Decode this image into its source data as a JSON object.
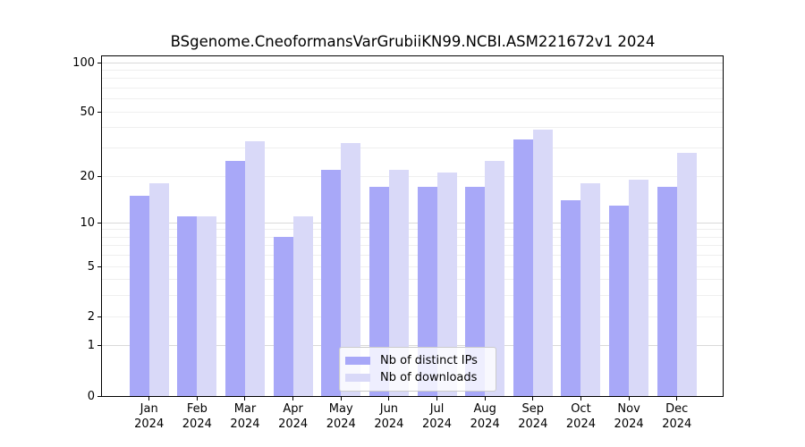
{
  "title": "BSgenome.CneoformansVarGrubiiKN99.NCBI.ASM221672v1 2024",
  "legend": {
    "items": [
      {
        "label": "Nb of distinct IPs",
        "color": "#a8a8f8"
      },
      {
        "label": "Nb of downloads",
        "color": "#d9d9f8"
      }
    ]
  },
  "chart_data": {
    "type": "bar",
    "title": "BSgenome.CneoformansVarGrubiiKN99.NCBI.ASM221672v1 2024",
    "categories": [
      "Jan 2024",
      "Feb 2024",
      "Mar 2024",
      "Apr 2024",
      "May 2024",
      "Jun 2024",
      "Jul 2024",
      "Aug 2024",
      "Sep 2024",
      "Oct 2024",
      "Nov 2024",
      "Dec 2024"
    ],
    "months": [
      "Jan",
      "Feb",
      "Mar",
      "Apr",
      "May",
      "Jun",
      "Jul",
      "Aug",
      "Sep",
      "Oct",
      "Nov",
      "Dec"
    ],
    "year": "2024",
    "series": [
      {
        "name": "Nb of distinct IPs",
        "color": "#a8a8f8",
        "values": [
          15,
          11,
          25,
          8,
          22,
          17,
          17,
          17,
          34,
          14,
          13,
          17
        ]
      },
      {
        "name": "Nb of downloads",
        "color": "#d9d9f8",
        "values": [
          18,
          11,
          33,
          11,
          32,
          22,
          21,
          25,
          39,
          18,
          19,
          28
        ]
      }
    ],
    "xlabel": "",
    "ylabel": "",
    "y_scale": "log1p",
    "ylim": [
      0,
      112
    ],
    "y_ticks": [
      0,
      1,
      2,
      5,
      10,
      20,
      50,
      100
    ],
    "y_major_gridlines": [
      1,
      10,
      100
    ],
    "y_minor_gridlines": [
      2,
      3,
      4,
      5,
      6,
      7,
      8,
      9,
      20,
      30,
      40,
      50,
      60,
      70,
      80,
      90
    ],
    "grid": true,
    "legend_position": "lower center"
  },
  "colors": {
    "background": "#ffffff",
    "axis": "#000000",
    "major_gridline": "#d9d9d9",
    "minor_gridline": "#efefef"
  }
}
